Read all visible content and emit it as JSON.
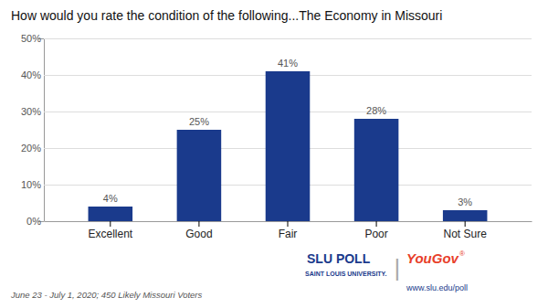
{
  "chart_data": {
    "type": "bar",
    "title": "How would you rate the condition of the following...The Economy in Missouri",
    "categories": [
      "Excellent",
      "Good",
      "Fair",
      "Poor",
      "Not Sure"
    ],
    "values": [
      4,
      25,
      41,
      28,
      3
    ],
    "value_labels": [
      "4%",
      "25%",
      "41%",
      "28%",
      "3%"
    ],
    "data_labels": true,
    "color": "#1a3a8c",
    "ylim": [
      0,
      50
    ],
    "yticks": [
      {
        "value": 0,
        "label": "0%"
      },
      {
        "value": 10,
        "label": "10%"
      },
      {
        "value": 20,
        "label": "20%"
      },
      {
        "value": 30,
        "label": "30%"
      },
      {
        "value": 40,
        "label": "40%"
      },
      {
        "value": 50,
        "label": "50%"
      }
    ],
    "grid": true,
    "annotations": [
      {
        "text": "June 23 - July 1, 2020; 450 Likely Missouri Voters",
        "color": "#555555"
      },
      {
        "text": "SLU POLL",
        "color": "#1a3a8c"
      },
      {
        "text": "SAINT LOUIS UNIVERSITY.",
        "color": "#1a3a8c"
      },
      {
        "text": "|",
        "color": "#aaaaaa"
      },
      {
        "text": "YouGov",
        "color": "#e8402a"
      },
      {
        "text": "®",
        "color": "#e8402a"
      },
      {
        "text": "www.slu.edu/poll",
        "color": "#1a3a8c"
      }
    ]
  }
}
